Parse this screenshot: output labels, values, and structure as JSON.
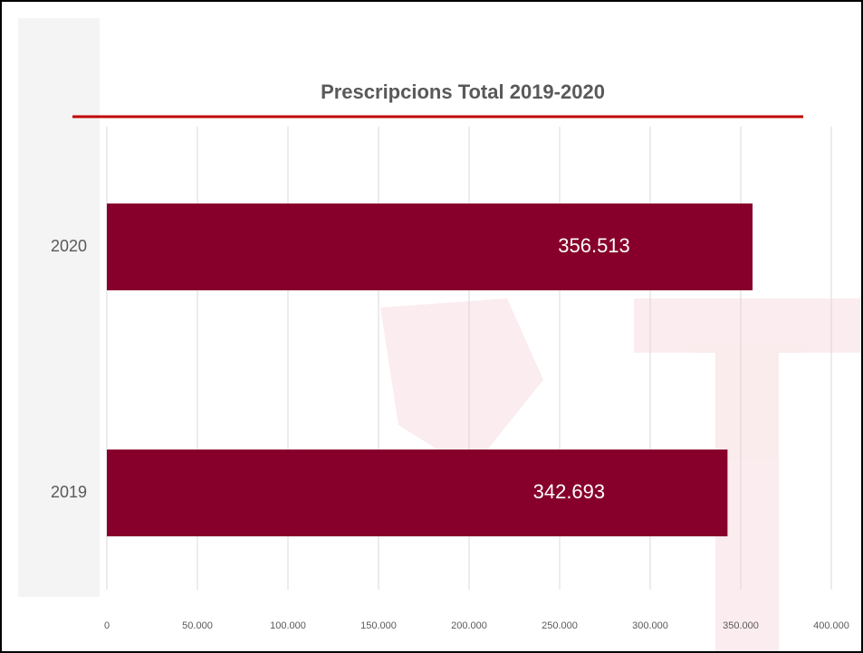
{
  "chart_data": {
    "type": "bar",
    "orientation": "horizontal",
    "title": "Prescripcions Total 2019-2020",
    "categories": [
      "2020",
      "2019"
    ],
    "values": [
      356513,
      342693
    ],
    "value_labels": [
      "356.513",
      "342.693"
    ],
    "color": "#87002b",
    "xlim": [
      0,
      400000
    ],
    "xticks": [
      0,
      {
        "value": 50000,
        "label": "50.000"
      },
      {
        "value": 100000,
        "label": "100.000"
      },
      {
        "value": 150000,
        "label": "150.000"
      },
      {
        "value": 200000,
        "label": "200.000"
      },
      {
        "value": 250000,
        "label": "250.000"
      },
      {
        "value": 300000,
        "label": "300.000"
      },
      {
        "value": 350000,
        "label": "350.000"
      },
      {
        "value": 400000,
        "label": "400.000"
      }
    ],
    "grid": true
  }
}
